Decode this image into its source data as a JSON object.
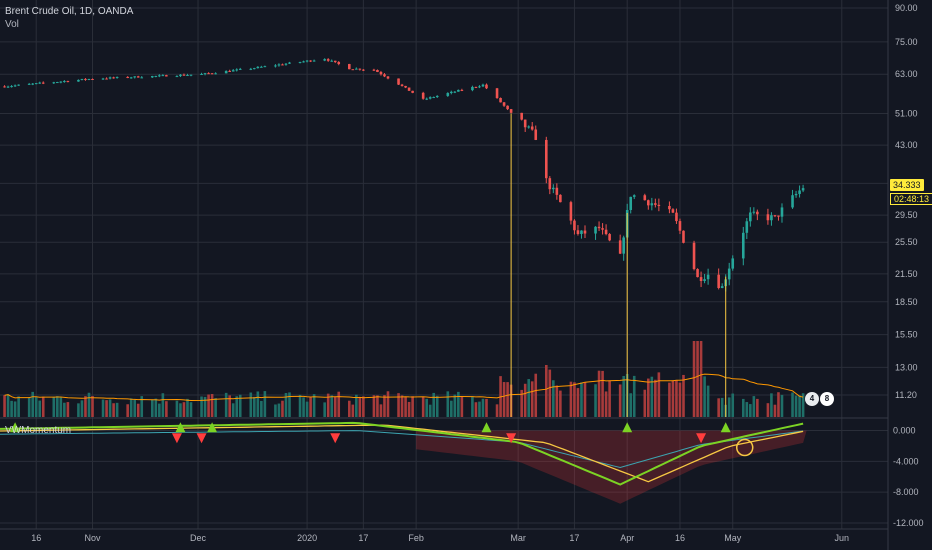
{
  "main_legend": {
    "symbol_line": "Brent Crude Oil, 1D, OANDA",
    "vol_label": "Vol"
  },
  "indicator_legend": {
    "name": "VWMomentum"
  },
  "price_axis": {
    "ticks": [
      "90.00",
      "75.00",
      "63.00",
      "51.00",
      "43.00",
      "35.00",
      "29.50",
      "25.50",
      "21.50",
      "18.50",
      "15.50",
      "13.00",
      "11.20"
    ],
    "current_price": "34.333",
    "countdown": "02:48:13"
  },
  "indicator_axis": {
    "ticks": [
      "0.000",
      "-4.000",
      "-8.000",
      "-12.000"
    ]
  },
  "time_axis": {
    "labels": [
      "16",
      "Nov",
      "Dec",
      "2020",
      "17",
      "Feb",
      "Mar",
      "17",
      "Apr",
      "16",
      "May",
      "Jun"
    ]
  },
  "event_badges": [
    {
      "label": "4"
    },
    {
      "label": "8"
    }
  ],
  "colors": {
    "background": "#131722",
    "grid": "#2a2e39",
    "up": "#26a69a",
    "down": "#ef5350",
    "vol_up": "#1f6f68",
    "vol_down": "#a83b3b",
    "vol_ma": "#ff9800",
    "vertical_markers": "#f7c843",
    "price_badge": "#ffeb3b",
    "mom_green": "#7cd324",
    "mom_yellow": "#f7c843",
    "mom_red": "#ff3d3d",
    "mom_teal": "#3ca4b0"
  },
  "chart_data": {
    "type": "candlestick",
    "title": "Brent Crude Oil, 1D, OANDA",
    "scale": "logarithmic",
    "ylim": [
      11.2,
      90
    ],
    "grid": true,
    "keypoints": [
      {
        "date": "2019-10-07",
        "price": 59.0
      },
      {
        "date": "2019-11-01",
        "price": 61.5
      },
      {
        "date": "2019-12-02",
        "price": 63.0
      },
      {
        "date": "2019-12-16",
        "price": 65.0
      },
      {
        "date": "2020-01-06",
        "price": 68.5
      },
      {
        "date": "2020-01-13",
        "price": 65.0
      },
      {
        "date": "2020-01-20",
        "price": 64.5
      },
      {
        "date": "2020-02-03",
        "price": 55.0
      },
      {
        "date": "2020-02-20",
        "price": 59.5
      },
      {
        "date": "2020-02-28",
        "price": 51.0
      },
      {
        "date": "2020-03-06",
        "price": 45.0
      },
      {
        "date": "2020-03-09",
        "price": 35.5
      },
      {
        "date": "2020-03-18",
        "price": 26.5
      },
      {
        "date": "2020-03-24",
        "price": 27.5
      },
      {
        "date": "2020-03-30",
        "price": 23.5
      },
      {
        "date": "2020-04-02",
        "price": 33.0
      },
      {
        "date": "2020-04-08",
        "price": 31.5
      },
      {
        "date": "2020-04-14",
        "price": 29.5
      },
      {
        "date": "2020-04-21",
        "price": 21.0
      },
      {
        "date": "2020-04-24",
        "price": 21.5
      },
      {
        "date": "2020-04-28",
        "price": 20.0
      },
      {
        "date": "2020-05-06",
        "price": 29.5
      },
      {
        "date": "2020-05-13",
        "price": 29.0
      },
      {
        "date": "2020-05-21",
        "price": 34.3
      }
    ],
    "vertical_markers": [
      "2020-02-28",
      "2020-04-01",
      "2020-04-29"
    ],
    "indicator": {
      "name": "VWMomentum",
      "ylim": [
        -12,
        1.5
      ],
      "buy_signals": [
        "2019-10-10",
        "2019-11-26",
        "2019-12-05",
        "2020-02-21",
        "2020-04-01",
        "2020-04-29"
      ],
      "sell_signals": [
        "2019-11-25",
        "2019-12-02",
        "2020-01-09",
        "2020-02-28",
        "2020-04-22"
      ]
    }
  }
}
